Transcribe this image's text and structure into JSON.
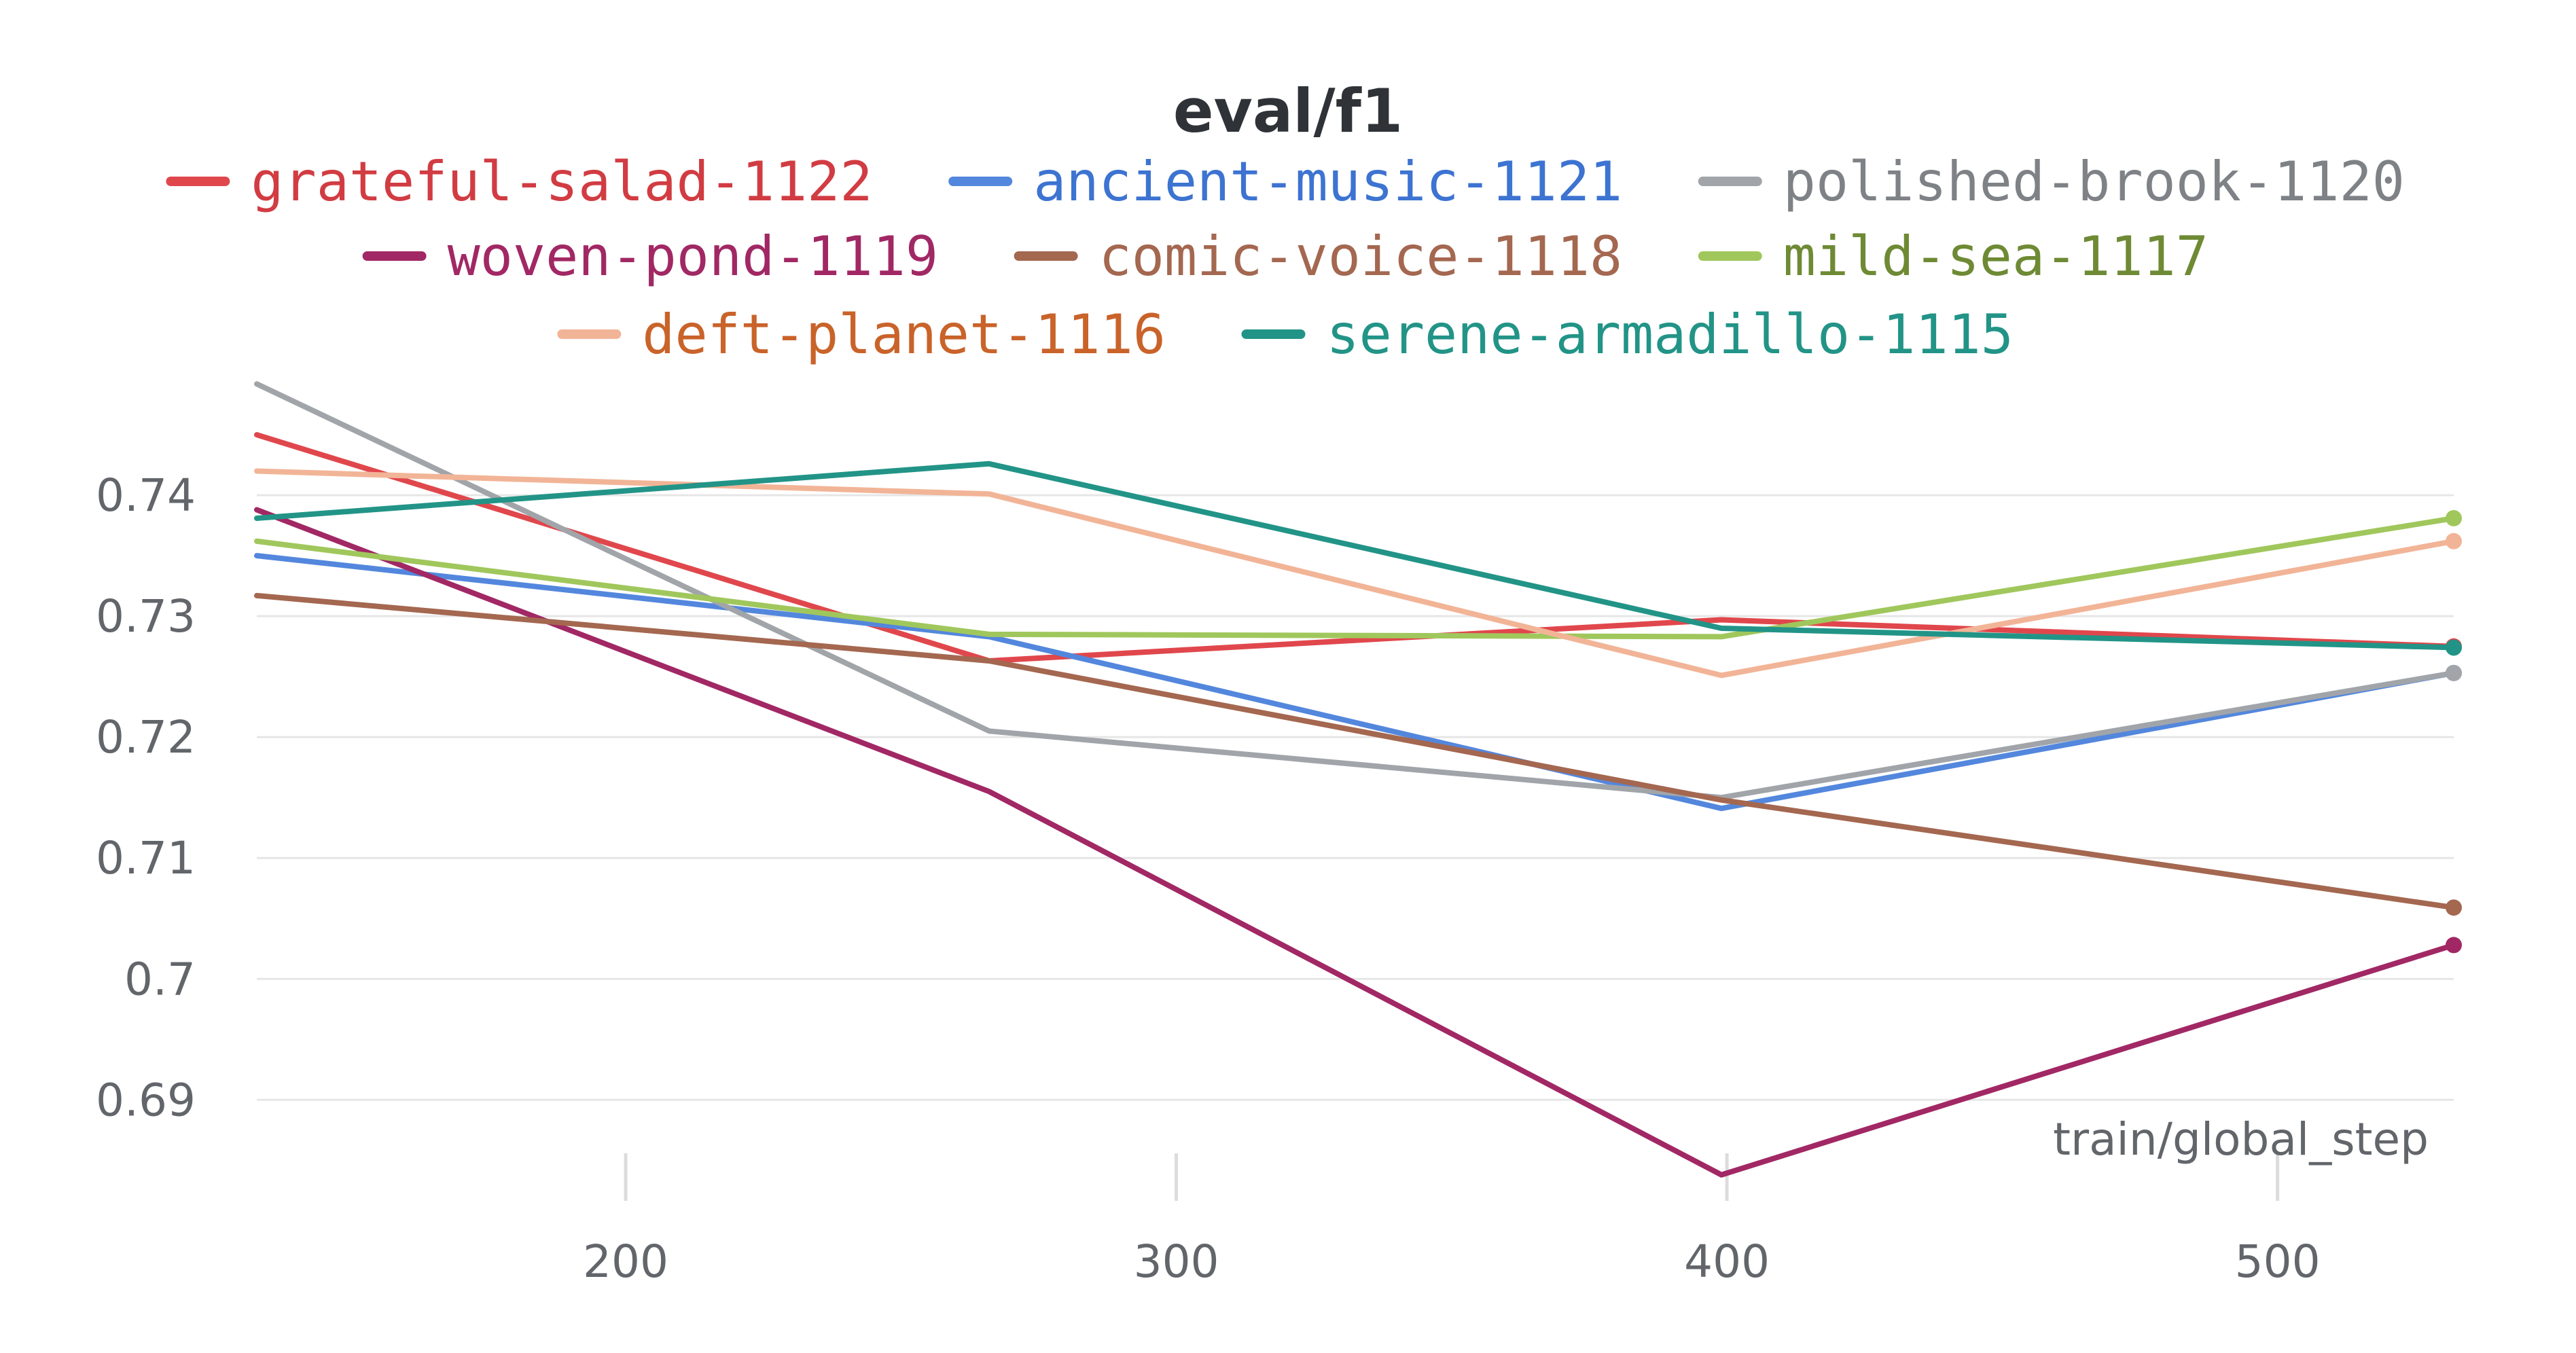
{
  "chart_data": {
    "type": "line",
    "title": "eval/f1",
    "xlabel": "train/global_step",
    "ylabel": "",
    "x": [
      133,
      266,
      399,
      532
    ],
    "xlim": [
      133,
      532
    ],
    "ylim": [
      0.6835,
      0.7495
    ],
    "xticks": [
      200,
      300,
      400,
      500
    ],
    "yticks": [
      0.69,
      0.7,
      0.71,
      0.72,
      0.73,
      0.74
    ],
    "ytick_labels": [
      "0.69",
      "0.7",
      "0.71",
      "0.72",
      "0.73",
      "0.74"
    ],
    "grid": true,
    "legend_position": "top-center",
    "series": [
      {
        "name": "grateful-salad-1122",
        "color": "#e0474c",
        "text_color": "#d13c42",
        "values": [
          0.745,
          0.7263,
          0.7297,
          0.7275
        ]
      },
      {
        "name": "ancient-music-1121",
        "color": "#5387dd",
        "text_color": "#3d73d1",
        "values": [
          0.735,
          0.7283,
          0.7141,
          0.7253
        ]
      },
      {
        "name": "polished-brook-1120",
        "color": "#a1a5a9",
        "text_color": "#7e8286",
        "values": [
          0.7492,
          0.7205,
          0.715,
          0.7253
        ]
      },
      {
        "name": "woven-pond-1119",
        "color": "#a12864",
        "text_color": "#a12864",
        "values": [
          0.7388,
          0.7155,
          0.6838,
          0.7028
        ]
      },
      {
        "name": "comic-voice-1118",
        "color": "#a46750",
        "text_color": "#a46750",
        "values": [
          0.7317,
          0.7263,
          0.7148,
          0.7059
        ]
      },
      {
        "name": "mild-sea-1117",
        "color": "#a0c75c",
        "text_color": "#6e8a34",
        "values": [
          0.7362,
          0.7285,
          0.7283,
          0.7381
        ]
      },
      {
        "name": "deft-planet-1116",
        "color": "#f2b497",
        "text_color": "#c9632a",
        "values": [
          0.742,
          0.7401,
          0.7251,
          0.7362
        ]
      },
      {
        "name": "serene-armadillo-1115",
        "color": "#229487",
        "text_color": "#229487",
        "values": [
          0.7381,
          0.7426,
          0.729,
          0.7274
        ]
      }
    ]
  }
}
